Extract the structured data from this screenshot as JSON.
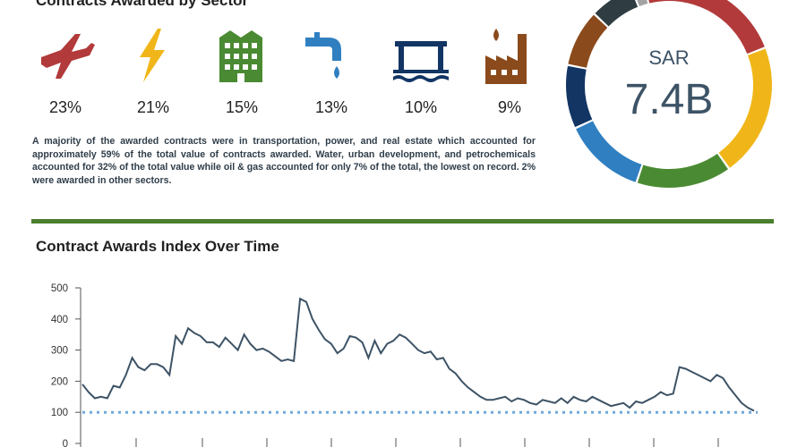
{
  "section1": {
    "title": "Contracts Awarded by Sector",
    "sectors": [
      {
        "icon": "airplane-icon",
        "color": "#b23a3a",
        "percent": "23%"
      },
      {
        "icon": "lightning-icon",
        "color": "#f0b619",
        "percent": "21%"
      },
      {
        "icon": "building-icon",
        "color": "#4a8a32",
        "percent": "15%"
      },
      {
        "icon": "water-tap-icon",
        "color": "#2f7fc1",
        "percent": "13%"
      },
      {
        "icon": "bridge-icon",
        "color": "#123564",
        "percent": "10%"
      },
      {
        "icon": "oil-factory-icon",
        "color": "#8b4a1b",
        "percent": "9%"
      }
    ],
    "paragraph": "A majority of the awarded contracts were in transportation, power, and real estate which accounted for approximately 59% of the total value of contracts awarded. Water, urban development, and petrochemicals accounted for 32% of the total value while oil & gas accounted for only 7% of the total, the lowest on record. 2% were awarded in other sectors."
  },
  "donut": {
    "currency": "SAR",
    "total": "7.4B",
    "slices": [
      {
        "value": 23,
        "color": "#b23a3a"
      },
      {
        "value": 21,
        "color": "#f0b619"
      },
      {
        "value": 15,
        "color": "#4a8a32"
      },
      {
        "value": 13,
        "color": "#2f7fc1"
      },
      {
        "value": 10,
        "color": "#123564"
      },
      {
        "value": 9,
        "color": "#8b4a1b"
      },
      {
        "value": 7,
        "color": "#2f3d42"
      },
      {
        "value": 2,
        "color": "#a3a3a3"
      }
    ]
  },
  "section2": {
    "title": "Contract Awards Index Over Time"
  },
  "chart_data": {
    "type": "line",
    "title": "Contract Awards Index Over Time",
    "xlabel": "",
    "ylabel": "",
    "ylim": [
      0,
      500
    ],
    "yticks": [
      0,
      100,
      200,
      300,
      400,
      500
    ],
    "grid": false,
    "baseline": {
      "value": 100,
      "style": "dotted",
      "color": "#6fa8dc"
    },
    "line_color": "#3d5366",
    "series": [
      {
        "values": [
          190,
          165,
          145,
          150,
          145,
          185,
          180,
          220,
          275,
          245,
          235,
          255,
          255,
          245,
          220,
          345,
          320,
          370,
          355,
          345,
          325,
          325,
          310,
          340,
          320,
          300,
          350,
          320,
          300,
          305,
          295,
          280,
          265,
          270,
          265,
          465,
          455,
          400,
          365,
          335,
          320,
          290,
          305,
          345,
          340,
          325,
          275,
          330,
          290,
          320,
          330,
          350,
          340,
          320,
          300,
          290,
          295,
          270,
          275,
          240,
          225,
          200,
          180,
          165,
          150,
          140,
          140,
          145,
          150,
          135,
          145,
          140,
          130,
          125,
          140,
          135,
          130,
          145,
          130,
          150,
          140,
          135,
          150,
          140,
          130,
          120,
          125,
          130,
          115,
          135,
          130,
          140,
          150,
          165,
          155,
          160,
          245,
          240,
          230,
          220,
          210,
          200,
          220,
          210,
          180,
          155,
          130,
          115,
          105
        ]
      }
    ]
  }
}
